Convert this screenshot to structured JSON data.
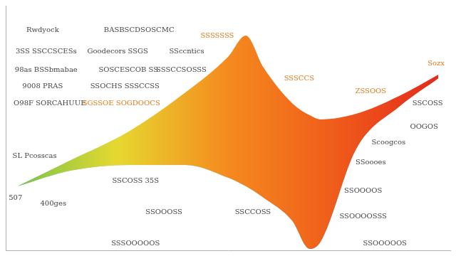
{
  "chart_data": {
    "type": "area",
    "x": [
      2.7,
      14.7,
      27.6,
      40.4,
      50,
      54,
      58,
      64.4,
      68.4,
      70.8,
      78.8,
      88.5,
      97.3
    ],
    "series": [
      {
        "values": [
          26.2,
          36.9,
          48.5,
          64.5,
          79.1,
          87.8,
          74.7,
          60.2,
          55.2,
          53.5,
          55.8,
          63.1,
          71.8
        ]
      },
      {
        "values": [
          26.2,
          32.6,
          34.9,
          34.9,
          29.7,
          26.2,
          21.5,
          12.2,
          0.6,
          3.5,
          41.3,
          58.7,
          70.3
        ]
      }
    ],
    "colors": [
      "#6cc24a",
      "#e6d830",
      "#f58a1e",
      "#ef5a1a",
      "#e2241c",
      "#1e96eb"
    ],
    "xlim": [
      0,
      100
    ],
    "ylim": [
      0,
      100
    ],
    "tick_labels": false,
    "grid": false,
    "marker": "none",
    "annotations": [
      {
        "text": "Rwdyock",
        "x": 8.3,
        "y": 90.1,
        "color": "#444444"
      },
      {
        "text": "BASBSCDSOSCMC",
        "x": 30.0,
        "y": 90.1,
        "color": "#444444"
      },
      {
        "text": "SSSSSSS",
        "x": 47.6,
        "y": 87.8,
        "color": "#e07b1a"
      },
      {
        "text": "3SS SSCCSCESs",
        "x": 9.1,
        "y": 81.4,
        "color": "#444444"
      },
      {
        "text": "Goodecors SSGS",
        "x": 25.2,
        "y": 81.4,
        "color": "#444444"
      },
      {
        "text": "SSccntics",
        "x": 40.7,
        "y": 81.4,
        "color": "#444444"
      },
      {
        "text": "98as BSSbmabae",
        "x": 9.1,
        "y": 73.8,
        "color": "#444444"
      },
      {
        "text": "SOSCESCOB SS",
        "x": 27.6,
        "y": 73.8,
        "color": "#444444"
      },
      {
        "text": "SSSCCSOSSS",
        "x": 39.5,
        "y": 73.8,
        "color": "#444444"
      },
      {
        "text": "9008 PRAS",
        "x": 8.3,
        "y": 66.9,
        "color": "#444444"
      },
      {
        "text": "SSOCHS SSSCCSS",
        "x": 26.8,
        "y": 66.9,
        "color": "#444444"
      },
      {
        "text": "O98F SORCAHUUE",
        "x": 9.9,
        "y": 60.2,
        "color": "#444444"
      },
      {
        "text": "SGSSOE SOGDOOCS",
        "x": 26.0,
        "y": 60.2,
        "color": "#e07b1a"
      },
      {
        "text": "SSSCCS",
        "x": 66.0,
        "y": 70.3,
        "color": "#e07b1a"
      },
      {
        "text": "ZSSOOS",
        "x": 82.1,
        "y": 65.1,
        "color": "#e07b1a"
      },
      {
        "text": "Sozx",
        "x": 96.8,
        "y": 76.2,
        "color": "#e07b1a"
      },
      {
        "text": "SSCOSS",
        "x": 94.9,
        "y": 60.2,
        "color": "#444444"
      },
      {
        "text": "OOGOS",
        "x": 94.1,
        "y": 50.6,
        "color": "#444444"
      },
      {
        "text": "Scoogcos",
        "x": 86.1,
        "y": 44.2,
        "color": "#444444"
      },
      {
        "text": "SSoooes",
        "x": 82.1,
        "y": 36.0,
        "color": "#444444"
      },
      {
        "text": "SSOOOOS",
        "x": 80.4,
        "y": 24.4,
        "color": "#444444"
      },
      {
        "text": "SSOOOOSSS",
        "x": 80.4,
        "y": 13.7,
        "color": "#444444"
      },
      {
        "text": "SSOOOOOS",
        "x": 85.3,
        "y": 2.9,
        "color": "#444444"
      },
      {
        "text": "SSCOSS 35S",
        "x": 29.2,
        "y": 28.5,
        "color": "#444444"
      },
      {
        "text": "SSOOOSS",
        "x": 35.6,
        "y": 15.7,
        "color": "#444444"
      },
      {
        "text": "SSCCOSS",
        "x": 55.6,
        "y": 15.7,
        "color": "#444444"
      },
      {
        "text": "SSSOOOOOS",
        "x": 29.2,
        "y": 2.9,
        "color": "#444444"
      },
      {
        "text": "400ges",
        "x": 10.7,
        "y": 19.2,
        "color": "#444444"
      },
      {
        "text": "SL Pcosscas",
        "x": 6.5,
        "y": 38.4,
        "color": "#444444"
      },
      {
        "text": "507",
        "x": 2.2,
        "y": 21.5,
        "color": "#444444"
      }
    ]
  }
}
